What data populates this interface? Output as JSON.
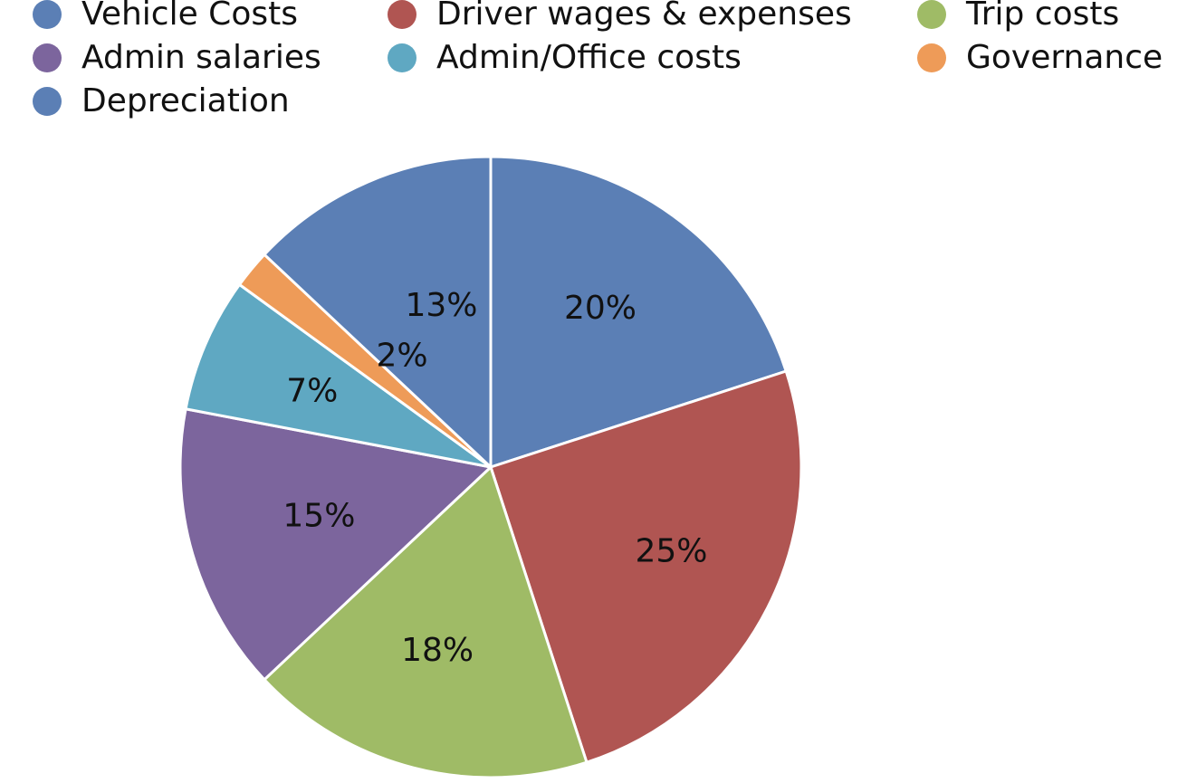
{
  "chart_data": {
    "type": "pie",
    "title": "",
    "legend_placement": "top",
    "start": "12 o'clock, clockwise",
    "slices": [
      {
        "name": "Vehicle Costs",
        "value": 20,
        "label": "20%",
        "color": "#5B7FB5"
      },
      {
        "name": "Driver wages & expenses",
        "value": 25,
        "label": "25%",
        "color": "#B05552"
      },
      {
        "name": "Trip costs",
        "value": 18,
        "label": "18%",
        "color": "#9FBB66"
      },
      {
        "name": "Admin salaries",
        "value": 15,
        "label": "15%",
        "color": "#7C659D"
      },
      {
        "name": "Admin/Office costs",
        "value": 7,
        "label": "7%",
        "color": "#5FA8C2"
      },
      {
        "name": "Governance",
        "value": 2,
        "label": "2%",
        "color": "#EE9B58"
      },
      {
        "name": "Depreciation",
        "value": 13,
        "label": "13%",
        "color": "#5B7FB5"
      }
    ]
  }
}
